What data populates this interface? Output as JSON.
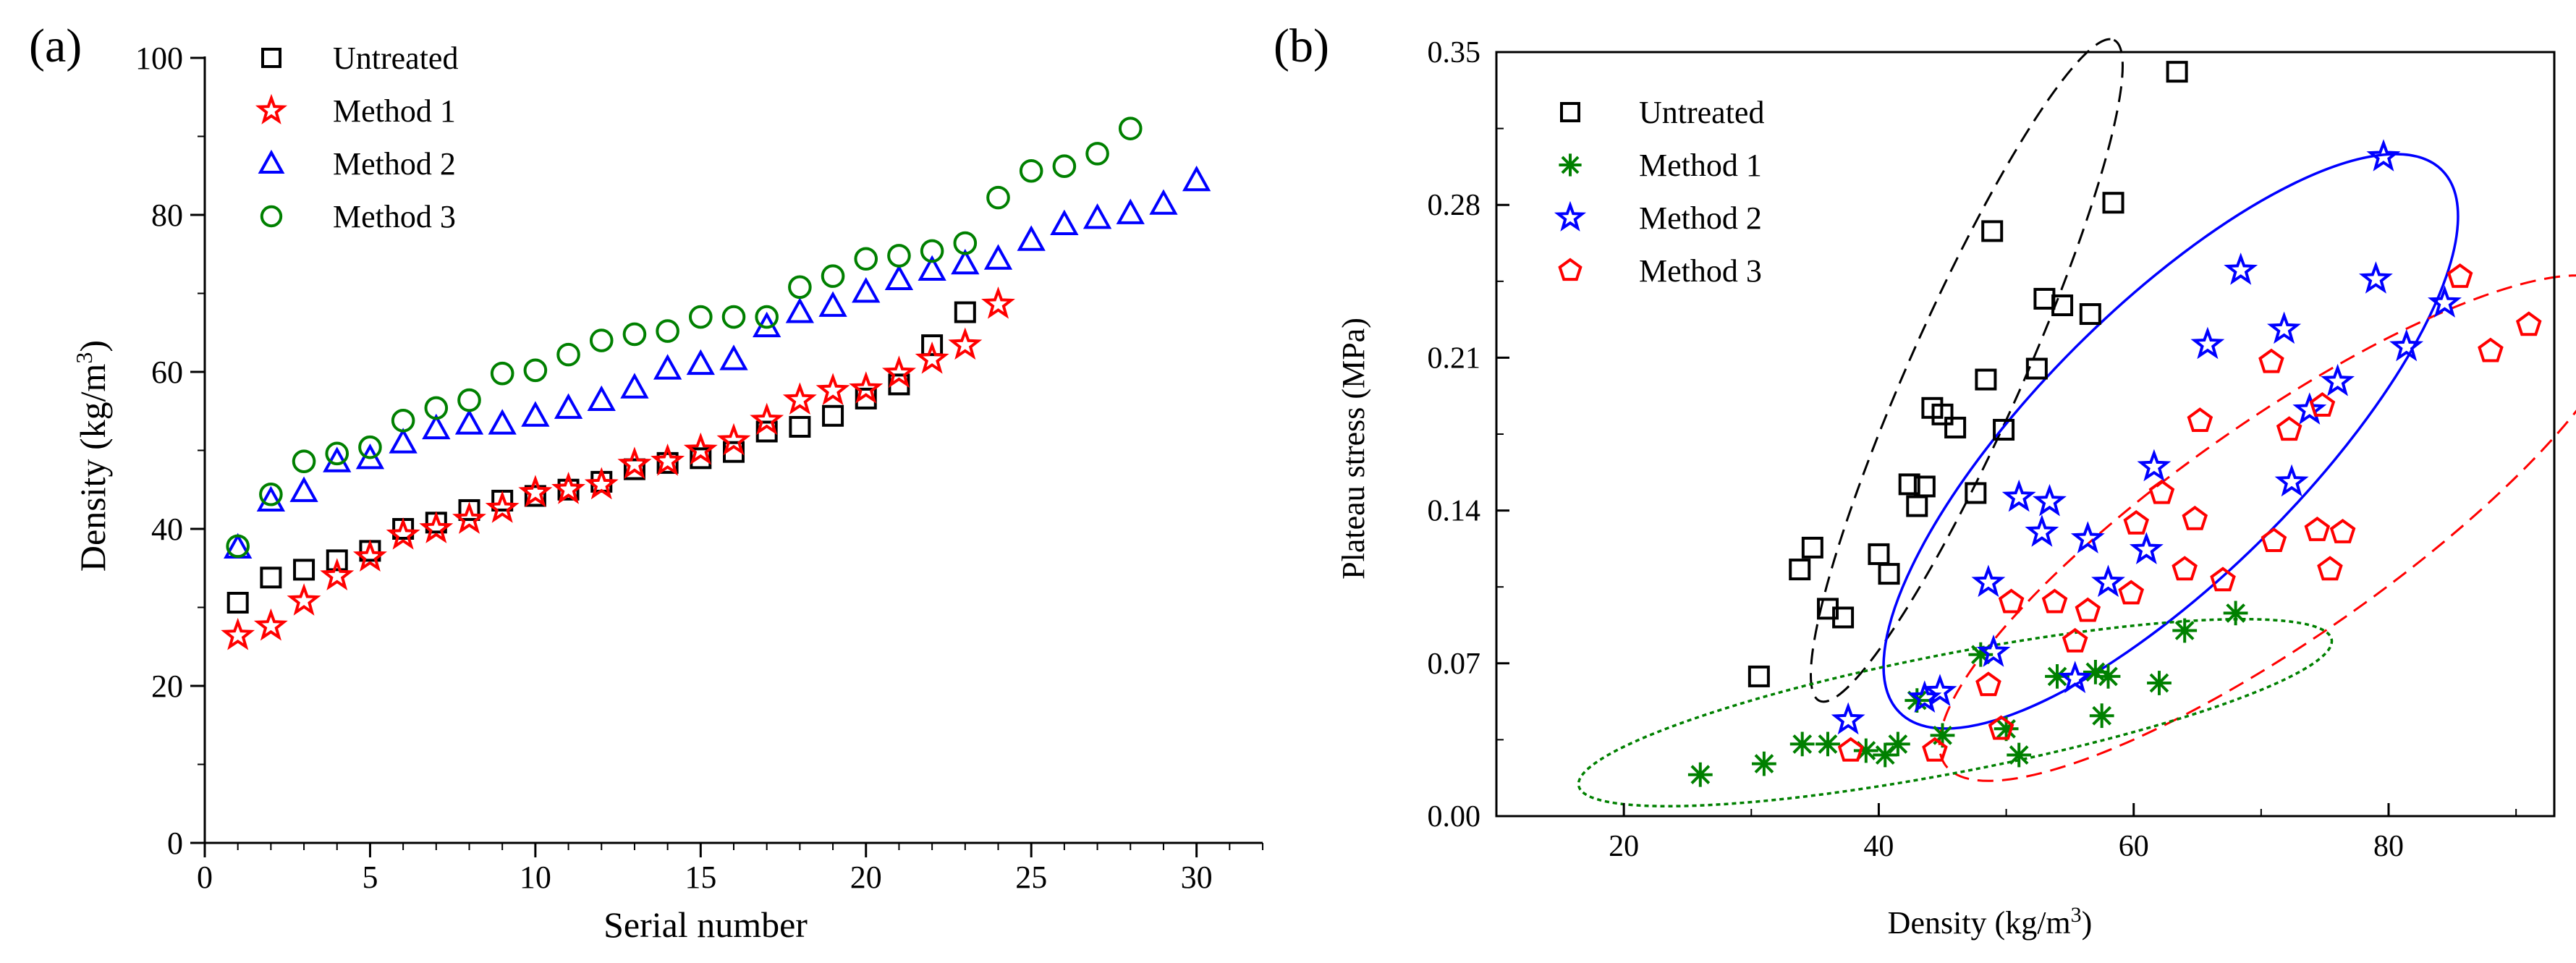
{
  "panels": {
    "a": {
      "label": "(a)"
    },
    "b": {
      "label": "(b)"
    }
  },
  "chart_data": [
    {
      "id": "a",
      "type": "scatter",
      "title": "",
      "xlabel": "Serial number",
      "ylabel": "Density (kg/m",
      "ylabel_sup": "3",
      "ylabel_tail": ")",
      "xlim": [
        0,
        32
      ],
      "ylim": [
        0,
        100
      ],
      "xticks": [
        0,
        5,
        10,
        15,
        20,
        25,
        30
      ],
      "yticks": [
        0,
        20,
        40,
        60,
        80,
        100
      ],
      "legend_position": "top-left",
      "series": [
        {
          "name": "Untreated",
          "marker": "square",
          "color": "#000000",
          "x": [
            1,
            2,
            3,
            4,
            5,
            6,
            7,
            8,
            9,
            10,
            11,
            12,
            13,
            14,
            15,
            16,
            17,
            18,
            19,
            20,
            21,
            22,
            23
          ],
          "y": [
            30.6,
            33.8,
            34.8,
            36.0,
            37.2,
            40.0,
            40.8,
            42.4,
            43.6,
            44.2,
            45.0,
            46.0,
            47.6,
            48.4,
            49.0,
            49.8,
            52.4,
            53.0,
            54.4,
            56.6,
            58.4,
            63.4,
            67.6
          ]
        },
        {
          "name": "Method 1",
          "marker": "star",
          "color": "#ff0000",
          "x": [
            1,
            2,
            3,
            4,
            5,
            6,
            7,
            8,
            9,
            10,
            11,
            12,
            13,
            14,
            15,
            16,
            17,
            18,
            19,
            20,
            21,
            22,
            23,
            24
          ],
          "y": [
            26.4,
            27.6,
            30.8,
            34.0,
            36.4,
            39.2,
            40.0,
            41.2,
            42.6,
            44.6,
            45.0,
            45.6,
            48.2,
            48.6,
            50.0,
            51.2,
            53.8,
            56.4,
            57.6,
            57.8,
            59.8,
            61.6,
            63.4,
            68.6
          ]
        },
        {
          "name": "Method 2",
          "marker": "triangle",
          "color": "#0000ff",
          "x": [
            1,
            2,
            3,
            4,
            5,
            6,
            7,
            8,
            9,
            10,
            11,
            12,
            13,
            14,
            15,
            16,
            17,
            18,
            19,
            20,
            21,
            22,
            23,
            24,
            25,
            26,
            27,
            28,
            29,
            30
          ],
          "y": [
            37.6,
            43.6,
            44.8,
            48.6,
            49.0,
            51.0,
            52.8,
            53.4,
            53.4,
            54.4,
            55.4,
            56.4,
            58.0,
            60.4,
            61.0,
            61.6,
            65.8,
            67.6,
            68.4,
            70.2,
            71.8,
            73.0,
            73.8,
            74.4,
            76.8,
            78.8,
            79.6,
            80.2,
            81.4,
            84.4
          ]
        },
        {
          "name": "Method 3",
          "marker": "circle",
          "color": "#008000",
          "x": [
            1,
            2,
            3,
            4,
            5,
            6,
            7,
            8,
            9,
            10,
            11,
            12,
            13,
            14,
            15,
            16,
            17,
            18,
            19,
            20,
            21,
            22,
            23,
            24,
            25,
            26,
            27,
            28
          ],
          "y": [
            37.8,
            44.4,
            48.6,
            49.6,
            50.4,
            53.8,
            55.4,
            56.4,
            59.8,
            60.2,
            62.2,
            64.0,
            64.8,
            65.2,
            67.0,
            67.0,
            67.0,
            70.8,
            72.2,
            74.4,
            74.8,
            75.4,
            76.4,
            82.2,
            85.6,
            86.2,
            87.8,
            91.0
          ]
        }
      ]
    },
    {
      "id": "b",
      "type": "scatter",
      "title": "",
      "xlabel": "Density (kg/m",
      "xlabel_sup": "3",
      "xlabel_tail": ")",
      "ylabel": "Plateau stress (MPa)",
      "xlim": [
        10,
        93
      ],
      "ylim": [
        0.0,
        0.35
      ],
      "xticks": [
        20,
        40,
        60,
        80
      ],
      "yticks": [
        0.0,
        0.07,
        0.14,
        0.21,
        0.28,
        0.35
      ],
      "ytick_labels": [
        "0.00",
        "0.07",
        "0.14",
        "0.21",
        "0.28",
        "0.35"
      ],
      "legend_position": "top-left",
      "series": [
        {
          "name": "Untreated",
          "marker": "square",
          "color": "#000000",
          "x": [
            30.6,
            33.8,
            34.8,
            36.0,
            37.2,
            40.0,
            40.8,
            42.4,
            43.0,
            43.6,
            44.2,
            45.0,
            46.0,
            47.6,
            48.4,
            48.9,
            49.8,
            52.4,
            53.0,
            54.4,
            56.6,
            58.4,
            63.4
          ],
          "y": [
            0.064,
            0.113,
            0.123,
            0.095,
            0.091,
            0.12,
            0.111,
            0.152,
            0.142,
            0.151,
            0.187,
            0.184,
            0.178,
            0.148,
            0.2,
            0.268,
            0.177,
            0.205,
            0.237,
            0.234,
            0.23,
            0.281,
            0.341
          ]
        },
        {
          "name": "Method 1",
          "marker": "asterisk",
          "color": "#008000",
          "x": [
            26.0,
            31.0,
            34.0,
            36.0,
            39.0,
            40.5,
            41.5,
            43.0,
            45.0,
            48.0,
            50.0,
            51.0,
            54.0,
            57.0,
            57.5,
            58.0,
            62.0,
            64.0,
            68.0
          ],
          "y": [
            0.019,
            0.024,
            0.033,
            0.033,
            0.03,
            0.028,
            0.033,
            0.053,
            0.037,
            0.074,
            0.04,
            0.028,
            0.064,
            0.066,
            0.046,
            0.064,
            0.061,
            0.085,
            0.093
          ]
        },
        {
          "name": "Method 2",
          "marker": "star",
          "color": "#0000ff",
          "x": [
            37.6,
            43.6,
            44.8,
            48.6,
            49.0,
            51.0,
            52.8,
            53.4,
            55.4,
            56.4,
            58.0,
            61.0,
            61.6,
            65.8,
            68.4,
            71.8,
            72.4,
            73.8,
            76.0,
            79.0,
            79.6,
            81.4,
            84.4
          ],
          "y": [
            0.044,
            0.054,
            0.057,
            0.107,
            0.075,
            0.146,
            0.13,
            0.144,
            0.063,
            0.127,
            0.107,
            0.122,
            0.16,
            0.216,
            0.25,
            0.223,
            0.153,
            0.186,
            0.199,
            0.246,
            0.302,
            0.215,
            0.235
          ]
        },
        {
          "name": "Method 3",
          "marker": "pentagon",
          "color": "#ff0000",
          "x": [
            37.8,
            44.4,
            48.6,
            49.6,
            50.4,
            53.8,
            55.4,
            56.4,
            59.8,
            60.2,
            62.2,
            64.0,
            64.8,
            65.2,
            67.0,
            70.8,
            71.0,
            72.2,
            74.4,
            74.8,
            75.4,
            76.4,
            85.6,
            88.0,
            91.0
          ],
          "y": [
            0.03,
            0.03,
            0.06,
            0.04,
            0.098,
            0.098,
            0.08,
            0.094,
            0.102,
            0.134,
            0.148,
            0.113,
            0.136,
            0.181,
            0.108,
            0.208,
            0.126,
            0.177,
            0.131,
            0.188,
            0.113,
            0.13,
            0.247,
            0.213,
            0.225
          ]
        }
      ]
    }
  ]
}
